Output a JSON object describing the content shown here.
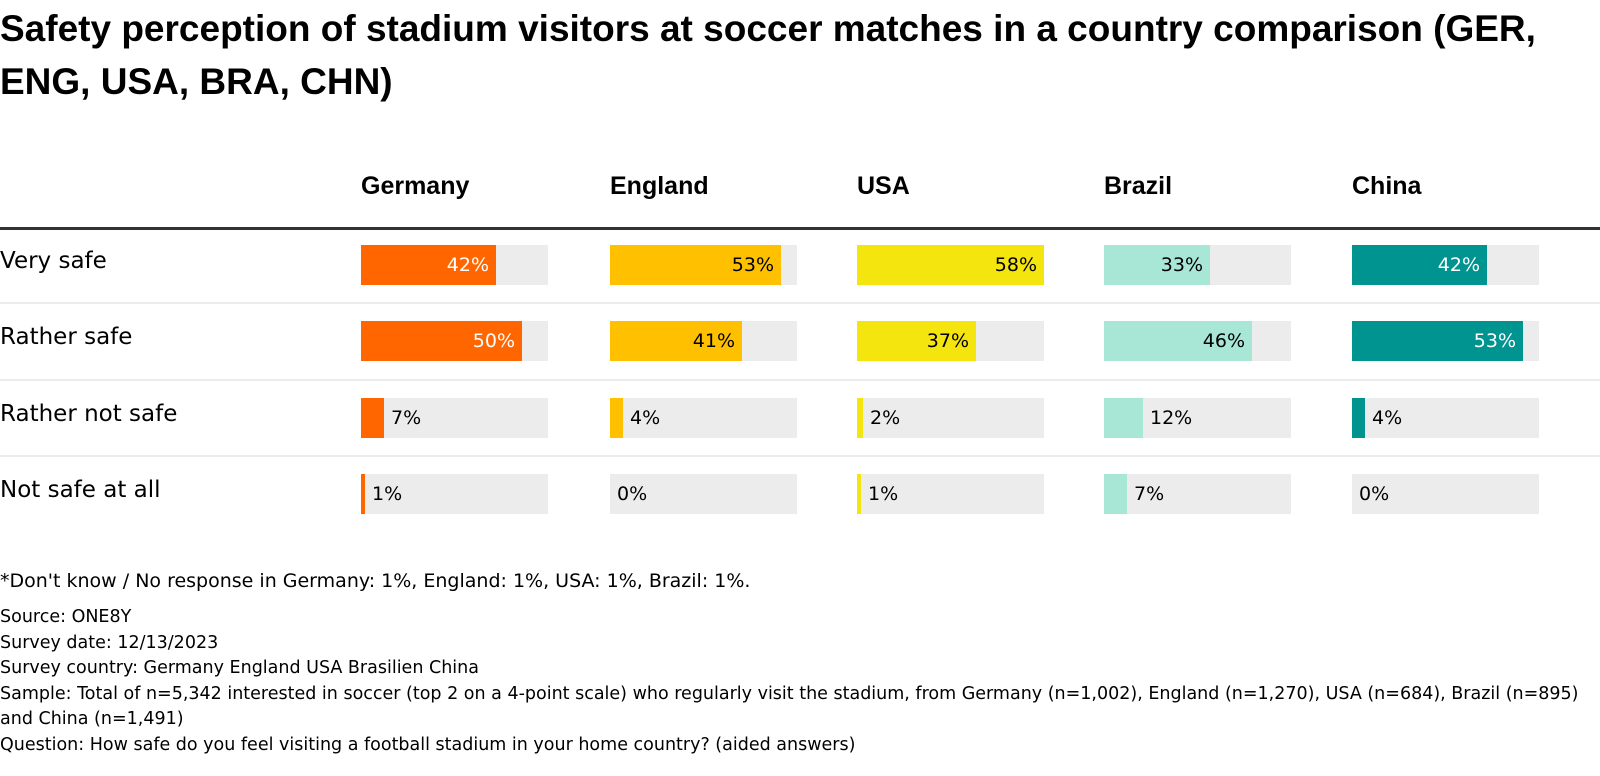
{
  "chart_data": {
    "type": "bar",
    "title": "Safety perception of stadium visitors at soccer matches in a country comparison (GER, ENG, USA, BRA, CHN)",
    "categories": [
      "Very safe",
      "Rather safe",
      "Rather not safe",
      "Not safe at all"
    ],
    "value_unit": "%",
    "scale_max": 58,
    "series": [
      {
        "name": "Germany",
        "color": "#ff6600",
        "label_color_inside": "#ffffff",
        "values": [
          42,
          50,
          7,
          1
        ],
        "labels": [
          "42%",
          "50%",
          "7%",
          "1%"
        ]
      },
      {
        "name": "England",
        "color": "#ffc000",
        "label_color_inside": "#000000",
        "values": [
          53,
          41,
          4,
          0
        ],
        "labels": [
          "53%",
          "41%",
          "4%",
          "0%"
        ]
      },
      {
        "name": "USA",
        "color": "#f5e50f",
        "label_color_inside": "#000000",
        "values": [
          58,
          37,
          2,
          1
        ],
        "labels": [
          "58%",
          "37%",
          "2%",
          "1%"
        ]
      },
      {
        "name": "Brazil",
        "color": "#a8e6d6",
        "label_color_inside": "#000000",
        "values": [
          33,
          46,
          12,
          7
        ],
        "labels": [
          "33%",
          "46%",
          "12%",
          "7%"
        ]
      },
      {
        "name": "China",
        "color": "#009490",
        "label_color_inside": "#ffffff",
        "values": [
          42,
          53,
          4,
          0
        ],
        "labels": [
          "42%",
          "53%",
          "4%",
          "0%"
        ]
      }
    ],
    "xlabel": "",
    "ylabel": "",
    "grid": false,
    "legend": "column headers"
  },
  "colors": {
    "track": "#ececec",
    "rule": "#333333",
    "separator": "#ececec"
  },
  "footnote": "*Don't know / No response in Germany: 1%, England: 1%, USA: 1%, Brazil: 1%.",
  "meta": {
    "source": "Source: ONE8Y",
    "survey_date": "Survey date: 12/13/2023",
    "survey_country": "Survey country: Germany England USA Brasilien China",
    "sample": "Sample: Total of n=5,342 interested in soccer (top 2 on a 4-point scale) who regularly visit the stadium, from Germany (n=1,002), England (n=1,270), USA (n=684), Brazil (n=895) and China (n=1,491)",
    "question": "Question: How safe do you feel visiting a football stadium in your home country? (aided answers)"
  }
}
